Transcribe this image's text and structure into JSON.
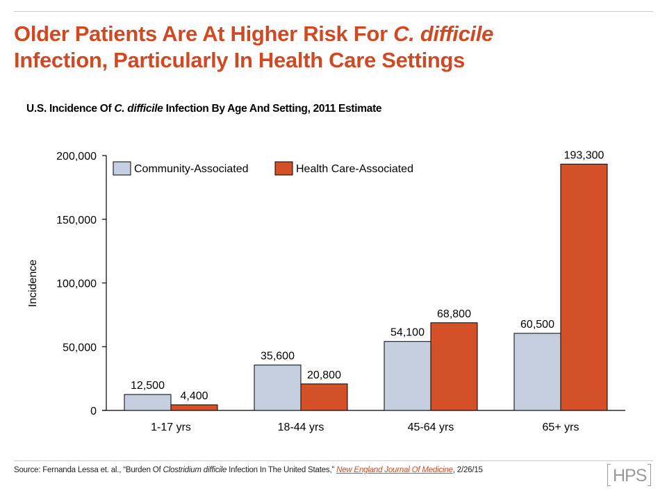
{
  "header": {
    "title_part1": "Older Patients Are At Higher Risk For ",
    "title_italic": "C. difficile",
    "title_part2": "Infection, Particularly In Health Care Settings",
    "subtitle_part1": "U.S. Incidence Of ",
    "subtitle_italic": "C. difficile",
    "subtitle_part2": " Infection By Age And Setting, 2011 Estimate"
  },
  "colors": {
    "brand": "#cf4a23",
    "community": "#c5cfe0",
    "health_care": "#d45027"
  },
  "chart_data": {
    "type": "bar",
    "title": "U.S. Incidence Of C. difficile Infection By Age And Setting, 2011 Estimate",
    "xlabel": "",
    "ylabel": "Incidence",
    "categories": [
      "1-17 yrs",
      "18-44 yrs",
      "45-64 yrs",
      "65+ yrs"
    ],
    "series": [
      {
        "name": "Community-Associated",
        "values": [
          12500,
          35600,
          54100,
          60500
        ],
        "labels": [
          "12,500",
          "35,600",
          "54,100",
          "60,500"
        ]
      },
      {
        "name": "Health Care-Associated",
        "values": [
          4400,
          20800,
          68800,
          193300
        ],
        "labels": [
          "4,400",
          "20,800",
          "68,800",
          "193,300"
        ]
      }
    ],
    "ylim": [
      0,
      200000
    ],
    "yticks": [
      0,
      50000,
      100000,
      150000,
      200000
    ],
    "ytick_labels": [
      "0",
      "50,000",
      "100,000",
      "150,000",
      "200,000"
    ],
    "grid": false,
    "legend_position": "top-left"
  },
  "footer": {
    "source_prefix": "Source: Fernanda  Lessa et. al., “Burden  Of ",
    "source_italic": "Clostridium difficile",
    "source_mid": " Infection  In  The  United  States,” ",
    "source_link": "New England Journal Of Medicine",
    "source_suffix": ", 2/26/15",
    "logo": "HPS"
  }
}
